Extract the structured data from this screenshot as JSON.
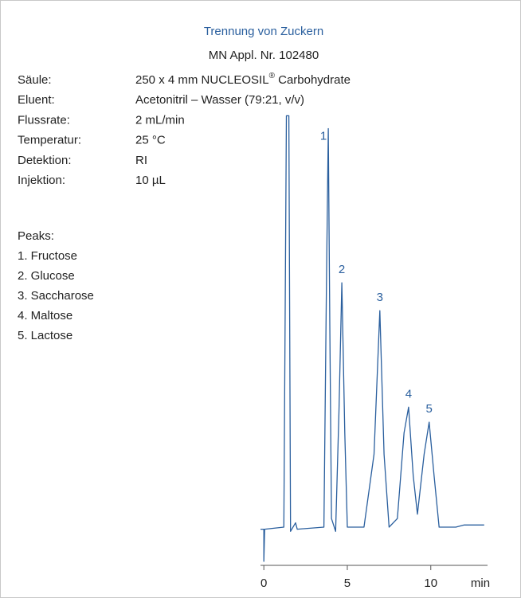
{
  "chart_data": {
    "type": "line",
    "title": "Trennung von Zuckern",
    "subtitle": "MN Appl. Nr. 102480",
    "conditions": [
      {
        "label": "Säule:",
        "value": [
          "250 x 4 mm NUCLEOSIL",
          "®",
          " Carbohydrate"
        ]
      },
      {
        "label": "Eluent:",
        "value": [
          "Acetonitril – Wasser (79:21, v/v)"
        ]
      },
      {
        "label": "Flussrate:",
        "value": [
          "2 mL/min"
        ]
      },
      {
        "label": "Temperatur:",
        "value": [
          "25 °C"
        ]
      },
      {
        "label": "Detektion:",
        "value": [
          "RI"
        ]
      },
      {
        "label": "Injektion:",
        "value": [
          "10 µL"
        ]
      }
    ],
    "peaks_title": "Peaks:",
    "peaks_list": [
      "1. Fructose",
      "2. Glucose",
      "3. Saccharose",
      "4. Maltose",
      "5. Lactose"
    ],
    "xlabel": "min",
    "xlim": [
      -0.2,
      13.4
    ],
    "xticks": [
      0,
      5,
      10
    ],
    "ylim": [
      -5,
      100
    ],
    "color": "#2a5f9e",
    "x": [
      -0.2,
      0.0,
      0.0,
      0.05,
      1.2,
      1.35,
      1.5,
      1.6,
      1.9,
      2.0,
      3.6,
      3.75,
      3.86,
      3.95,
      4.05,
      4.3,
      4.5,
      4.67,
      4.85,
      5.0,
      6.0,
      6.6,
      6.95,
      7.2,
      7.5,
      8.0,
      8.4,
      8.67,
      8.95,
      9.2,
      9.6,
      9.9,
      10.2,
      10.5,
      11.5,
      12.0,
      13.2
    ],
    "values": [
      2.5,
      2.5,
      -5,
      2.5,
      3,
      99,
      99,
      2,
      4,
      2.5,
      3,
      60,
      96,
      50,
      5,
      2,
      30,
      60,
      25,
      3,
      3,
      20,
      53.5,
      20,
      3,
      5,
      25,
      31,
      15,
      6,
      20,
      27.5,
      15,
      3,
      3,
      3.5,
      3.5
    ],
    "peak_labels": [
      {
        "label": "1",
        "x": 3.86,
        "y": 96
      },
      {
        "label": "2",
        "x": 4.67,
        "y": 60
      },
      {
        "label": "3",
        "x": 6.95,
        "y": 53.5
      },
      {
        "label": "4",
        "x": 8.67,
        "y": 31
      },
      {
        "label": "5",
        "x": 9.9,
        "y": 27.5
      }
    ]
  }
}
